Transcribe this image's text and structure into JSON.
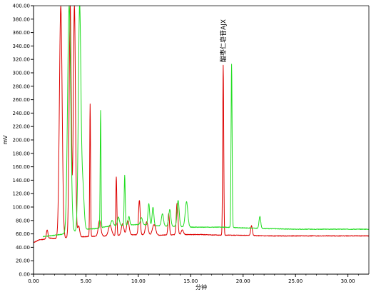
{
  "chart_data": {
    "type": "line",
    "title": "",
    "xlabel": "分钟",
    "ylabel": "mV",
    "xlim": [
      0.0,
      32.0
    ],
    "ylim": [
      0.0,
      400.0
    ],
    "x_ticks": [
      "0.00",
      "5.00",
      "10.00",
      "15.00",
      "20.00",
      "25.00",
      "30.00"
    ],
    "x_tick_values": [
      0,
      5,
      10,
      15,
      20,
      25,
      30
    ],
    "y_ticks": [
      "0.00",
      "20.00",
      "40.00",
      "60.00",
      "80.00",
      "100.00",
      "120.00",
      "140.00",
      "160.00",
      "180.00",
      "200.00",
      "220.00",
      "240.00",
      "260.00",
      "280.00",
      "300.00",
      "320.00",
      "340.00",
      "360.00",
      "380.00",
      "400.00"
    ],
    "y_tick_values": [
      0,
      20,
      40,
      60,
      80,
      100,
      120,
      140,
      160,
      180,
      200,
      220,
      240,
      260,
      280,
      300,
      320,
      340,
      360,
      380,
      400
    ],
    "grid": false,
    "colors": {
      "red": "#dd0000",
      "green": "#22dd22"
    },
    "annotations": [
      {
        "text": "酸枣仁皂苷AJX",
        "x": 18.1,
        "y": 316
      }
    ],
    "series": [
      {
        "color": "red",
        "baseline": [
          [
            0,
            47
          ],
          [
            0.5,
            51
          ],
          [
            1.0,
            52
          ],
          [
            1.4,
            54
          ],
          [
            2.0,
            53
          ],
          [
            3,
            54
          ],
          [
            5,
            56
          ],
          [
            7,
            57
          ],
          [
            10,
            59
          ],
          [
            12,
            58
          ],
          [
            14,
            59
          ],
          [
            16,
            59
          ],
          [
            18,
            58
          ],
          [
            20,
            58
          ],
          [
            22,
            57
          ],
          [
            25,
            57
          ],
          [
            28,
            57
          ],
          [
            30,
            57
          ],
          [
            32,
            57
          ]
        ],
        "peaks": [
          {
            "x": 1.3,
            "h": 66,
            "w": 0.07
          },
          {
            "x": 2.6,
            "h": 400,
            "w": 0.13
          },
          {
            "x": 3.5,
            "h": 400,
            "w": 0.1
          },
          {
            "x": 3.9,
            "h": 400,
            "w": 0.1
          },
          {
            "x": 4.3,
            "h": 72,
            "w": 0.1
          },
          {
            "x": 5.4,
            "h": 254,
            "w": 0.04
          },
          {
            "x": 6.3,
            "h": 80,
            "w": 0.12
          },
          {
            "x": 7.3,
            "h": 73,
            "w": 0.15
          },
          {
            "x": 7.9,
            "h": 145,
            "w": 0.05
          },
          {
            "x": 8.5,
            "h": 75,
            "w": 0.12
          },
          {
            "x": 9.0,
            "h": 80,
            "w": 0.12
          },
          {
            "x": 10.1,
            "h": 110,
            "w": 0.08
          },
          {
            "x": 10.8,
            "h": 78,
            "w": 0.12
          },
          {
            "x": 11.5,
            "h": 74,
            "w": 0.15
          },
          {
            "x": 12.9,
            "h": 90,
            "w": 0.07
          },
          {
            "x": 13.7,
            "h": 106,
            "w": 0.08
          },
          {
            "x": 14.2,
            "h": 66,
            "w": 0.1
          },
          {
            "x": 18.1,
            "h": 311,
            "w": 0.05
          },
          {
            "x": 20.8,
            "h": 72,
            "w": 0.08
          }
        ]
      },
      {
        "color": "green",
        "baseline": [
          [
            0.9,
            56
          ],
          [
            1.5,
            57
          ],
          [
            2.0,
            58
          ],
          [
            3,
            60
          ],
          [
            4,
            64
          ],
          [
            5,
            67
          ],
          [
            6,
            68
          ],
          [
            7,
            71
          ],
          [
            8,
            72
          ],
          [
            9,
            73
          ],
          [
            10,
            74
          ],
          [
            12,
            72
          ],
          [
            14,
            71
          ],
          [
            15,
            70
          ],
          [
            16,
            70
          ],
          [
            18,
            70
          ],
          [
            20,
            69
          ],
          [
            22,
            68
          ],
          [
            25,
            67
          ],
          [
            28,
            67
          ],
          [
            30,
            67
          ],
          [
            32,
            67
          ]
        ],
        "peaks": [
          {
            "x": 3.4,
            "h": 400,
            "w": 0.15
          },
          {
            "x": 4.4,
            "h": 400,
            "w": 0.12
          },
          {
            "x": 4.7,
            "h": 130,
            "w": 0.12
          },
          {
            "x": 6.4,
            "h": 244,
            "w": 0.04
          },
          {
            "x": 7.5,
            "h": 80,
            "w": 0.12
          },
          {
            "x": 8.1,
            "h": 85,
            "w": 0.1
          },
          {
            "x": 8.7,
            "h": 147,
            "w": 0.05
          },
          {
            "x": 9.1,
            "h": 86,
            "w": 0.08
          },
          {
            "x": 10.3,
            "h": 84,
            "w": 0.1
          },
          {
            "x": 11.0,
            "h": 105,
            "w": 0.08
          },
          {
            "x": 11.4,
            "h": 100,
            "w": 0.08
          },
          {
            "x": 12.3,
            "h": 90,
            "w": 0.1
          },
          {
            "x": 13.0,
            "h": 96,
            "w": 0.1
          },
          {
            "x": 13.8,
            "h": 110,
            "w": 0.1
          },
          {
            "x": 14.6,
            "h": 108,
            "w": 0.12
          },
          {
            "x": 18.9,
            "h": 313,
            "w": 0.05
          },
          {
            "x": 21.6,
            "h": 86,
            "w": 0.08
          }
        ]
      }
    ]
  }
}
